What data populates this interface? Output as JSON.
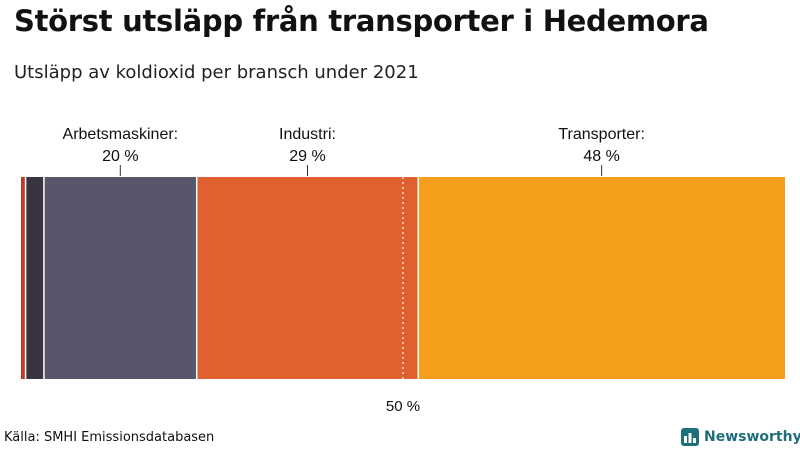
{
  "title": "Störst utsläpp från transporter i Hedemora",
  "subtitle": "Utsläpp av koldioxid per bransch under 2021",
  "source": "Källa: SMHI Emissionsdatabasen",
  "brand": "Newsworthy",
  "colors": {
    "brand": "#1f6f7a",
    "other_1": "#c0392b",
    "other_2": "#3a3440",
    "arbetsmaskiner": "#58566a",
    "industri": "#e06030",
    "transporter": "#f59e1c",
    "reference_line": "#ffffff"
  },
  "chart_data": {
    "type": "bar",
    "orientation": "horizontal-stacked-100",
    "unit": "%",
    "segments": [
      {
        "value": 0.6,
        "color": "#c0392b",
        "label": "",
        "value_label": ""
      },
      {
        "value": 2.4,
        "color": "#3a3440",
        "label": "",
        "value_label": ""
      },
      {
        "value": 20,
        "color": "#58566a",
        "label": "Arbetsmaskiner:",
        "value_label": "20 %"
      },
      {
        "value": 29,
        "color": "#e06030",
        "label": "Industri:",
        "value_label": "29 %"
      },
      {
        "value": 48,
        "color": "#f59e1c",
        "label": "Transporter:",
        "value_label": "48 %"
      }
    ],
    "reference_line": {
      "value": 50,
      "label": "50 %"
    },
    "xlim": [
      0,
      100
    ]
  }
}
